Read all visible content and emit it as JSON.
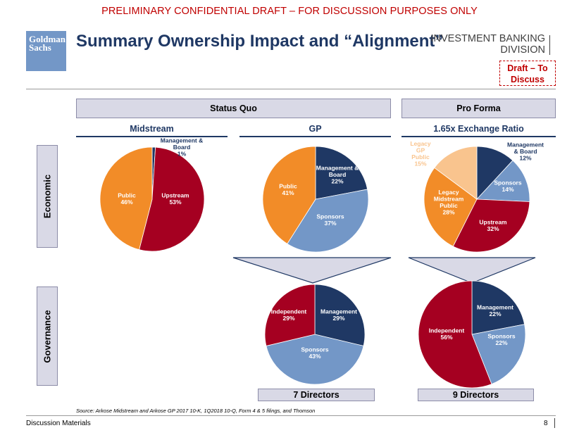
{
  "header": {
    "confidential": "PRELIMINARY CONFIDENTIAL DRAFT – FOR DISCUSSION PURPOSES ONLY",
    "logo_line1": "Goldman",
    "logo_line2": "Sachs",
    "title": "Summary Ownership Impact and “Alignment”",
    "division_line1": "INVESTMENT BANKING",
    "division_line2": "DIVISION",
    "draft_line1": "Draft – To",
    "draft_line2": "Discuss"
  },
  "sections": {
    "status_quo": "Status Quo",
    "pro_forma": "Pro Forma",
    "midstream": "Midstream",
    "gp": "GP",
    "exchange": "1.65x Exchange Ratio",
    "economic": "Economic",
    "governance": "Governance",
    "directors_gp": "7 Directors",
    "directors_pf": "9 Directors"
  },
  "footer": {
    "source": "Source: Arkose Midstream and Arkose GP 2017 10-K, 1Q2018 10-Q, Form 4 & 5 filings, and Thomson",
    "left": "Discussion Materials",
    "page": "8"
  },
  "colors": {
    "navy": "#1f3864",
    "blue": "#7397c7",
    "red": "#a50021",
    "orange": "#f28c28",
    "peach": "#f9c48e"
  },
  "chart_data": [
    {
      "type": "pie",
      "title": "Midstream",
      "slices": [
        {
          "label": [
            "Management &",
            "Board"
          ],
          "value": 1,
          "pct": "1%",
          "color": "#1f3864"
        },
        {
          "label": [
            "Upstream"
          ],
          "value": 53,
          "pct": "53%",
          "color": "#a50021"
        },
        {
          "label": [
            "Public"
          ],
          "value": 46,
          "pct": "46%",
          "color": "#f28c28"
        }
      ]
    },
    {
      "type": "pie",
      "title": "GP",
      "slices": [
        {
          "label": [
            "Management &",
            "Board"
          ],
          "value": 22,
          "pct": "22%",
          "color": "#1f3864"
        },
        {
          "label": [
            "Sponsors"
          ],
          "value": 37,
          "pct": "37%",
          "color": "#7397c7"
        },
        {
          "label": [
            "Public"
          ],
          "value": 41,
          "pct": "41%",
          "color": "#f28c28"
        }
      ]
    },
    {
      "type": "pie",
      "title": "1.65x Exchange Ratio",
      "slices": [
        {
          "label": [
            "Management",
            "& Board"
          ],
          "value": 12,
          "pct": "12%",
          "color": "#1f3864"
        },
        {
          "label": [
            "Sponsors"
          ],
          "value": 14,
          "pct": "14%",
          "color": "#7397c7"
        },
        {
          "label": [
            "Upstream"
          ],
          "value": 32,
          "pct": "32%",
          "color": "#a50021"
        },
        {
          "label": [
            "Legacy",
            "Midstream",
            "Public"
          ],
          "value": 28,
          "pct": "28%",
          "color": "#f28c28"
        },
        {
          "label": [
            "Legacy",
            "GP",
            "Public"
          ],
          "value": 15,
          "pct": "15%",
          "color": "#f9c48e"
        }
      ]
    },
    {
      "type": "pie",
      "title": "7 Directors",
      "slices": [
        {
          "label": [
            "Management"
          ],
          "value": 29,
          "pct": "29%",
          "color": "#1f3864"
        },
        {
          "label": [
            "Sponsors"
          ],
          "value": 43,
          "pct": "43%",
          "color": "#7397c7"
        },
        {
          "label": [
            "Independent"
          ],
          "value": 29,
          "pct": "29%",
          "color": "#a50021"
        }
      ]
    },
    {
      "type": "pie",
      "title": "9 Directors",
      "slices": [
        {
          "label": [
            "Management"
          ],
          "value": 22,
          "pct": "22%",
          "color": "#1f3864"
        },
        {
          "label": [
            "Sponsors"
          ],
          "value": 22,
          "pct": "22%",
          "color": "#7397c7"
        },
        {
          "label": [
            "Independent"
          ],
          "value": 56,
          "pct": "56%",
          "color": "#a50021"
        }
      ]
    }
  ]
}
